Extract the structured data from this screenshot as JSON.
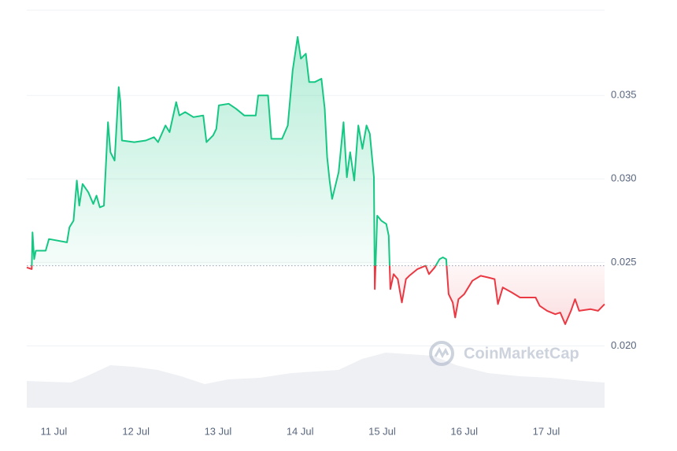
{
  "chart_data": {
    "type": "line",
    "watermark": "CoinMarketCap",
    "baseline": 0.0248,
    "up_color": "#16c784",
    "down_color": "#ea3943",
    "xlim": [
      -0.33,
      6.71
    ],
    "ylim": [
      0.0163,
      0.0401
    ],
    "yticks": [
      {
        "value": 0.02,
        "label": "0.020"
      },
      0.025,
      {
        "value": 0.03,
        "label": "0.030"
      },
      0.035
    ],
    "xticks": [
      {
        "value": 0,
        "label": "11 Jul"
      },
      {
        "value": 1,
        "label": "12 Jul"
      },
      {
        "value": 2,
        "label": "13 Jul"
      },
      {
        "value": 3,
        "label": "14 Jul"
      },
      {
        "value": 4,
        "label": "15 Jul"
      },
      {
        "value": 5,
        "label": "16 Jul"
      },
      {
        "value": 6,
        "label": "17 Jul"
      }
    ],
    "grid": true,
    "x": [
      -0.33,
      -0.27,
      -0.26,
      -0.24,
      -0.22,
      -0.1,
      -0.06,
      0.16,
      0.19,
      0.24,
      0.28,
      0.31,
      0.35,
      0.42,
      0.48,
      0.52,
      0.56,
      0.61,
      0.66,
      0.69,
      0.74,
      0.79,
      0.81,
      0.83,
      0.98,
      1.12,
      1.22,
      1.27,
      1.36,
      1.41,
      1.49,
      1.53,
      1.6,
      1.7,
      1.82,
      1.86,
      1.94,
      1.98,
      2.01,
      2.13,
      2.22,
      2.32,
      2.46,
      2.49,
      2.61,
      2.65,
      2.78,
      2.85,
      2.91,
      2.97,
      3.01,
      3.07,
      3.11,
      3.18,
      3.26,
      3.3,
      3.33,
      3.36,
      3.39,
      3.47,
      3.53,
      3.57,
      3.61,
      3.66,
      3.71,
      3.76,
      3.81,
      3.85,
      3.9,
      3.91,
      3.94,
      3.99,
      4.05,
      4.08,
      4.1,
      4.14,
      4.19,
      4.24,
      4.29,
      4.33,
      4.43,
      4.53,
      4.57,
      4.64,
      4.7,
      4.74,
      4.78,
      4.81,
      4.86,
      4.89,
      4.93,
      5.0,
      5.1,
      5.2,
      5.29,
      5.37,
      5.41,
      5.47,
      5.58,
      5.68,
      5.87,
      5.92,
      6.01,
      6.11,
      6.17,
      6.23,
      6.3,
      6.35,
      6.4,
      6.54,
      6.63,
      6.71
    ],
    "values": [
      0.0247,
      0.0246,
      0.0268,
      0.0252,
      0.0257,
      0.0257,
      0.0264,
      0.0262,
      0.0271,
      0.0275,
      0.0299,
      0.0284,
      0.0297,
      0.0292,
      0.0285,
      0.029,
      0.0283,
      0.0284,
      0.0334,
      0.0316,
      0.0311,
      0.0355,
      0.0346,
      0.0323,
      0.0322,
      0.0323,
      0.0325,
      0.0322,
      0.0332,
      0.0328,
      0.0346,
      0.0338,
      0.034,
      0.0337,
      0.0338,
      0.0322,
      0.0326,
      0.033,
      0.0344,
      0.0345,
      0.0342,
      0.0338,
      0.0338,
      0.035,
      0.035,
      0.0324,
      0.0324,
      0.0332,
      0.0365,
      0.0385,
      0.0372,
      0.0375,
      0.0358,
      0.0358,
      0.036,
      0.0342,
      0.0313,
      0.0299,
      0.0288,
      0.0304,
      0.0334,
      0.0301,
      0.0316,
      0.0299,
      0.0332,
      0.0318,
      0.0332,
      0.0327,
      0.0301,
      0.0234,
      0.0278,
      0.0275,
      0.0273,
      0.0266,
      0.0234,
      0.0243,
      0.024,
      0.0226,
      0.024,
      0.0242,
      0.0246,
      0.0248,
      0.0243,
      0.0247,
      0.0252,
      0.0253,
      0.0252,
      0.0231,
      0.0226,
      0.0217,
      0.0228,
      0.0231,
      0.0239,
      0.0242,
      0.0241,
      0.024,
      0.0225,
      0.0235,
      0.0232,
      0.0229,
      0.0229,
      0.0224,
      0.0221,
      0.0219,
      0.022,
      0.0213,
      0.0221,
      0.0228,
      0.0221,
      0.0222,
      0.0221,
      0.0225
    ]
  }
}
